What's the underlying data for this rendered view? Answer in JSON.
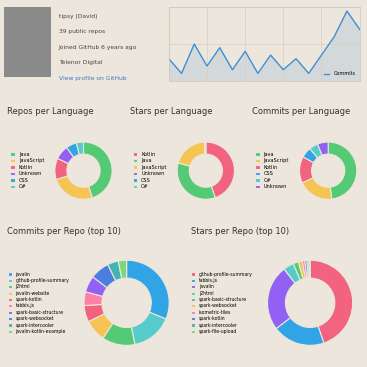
{
  "profile": {
    "name": "tipsy (David)",
    "repos": "39 public repos",
    "joined": "Joined GitHub 6 years ago",
    "company": "Telenor Digital",
    "link": "View profile on GitHub"
  },
  "chart_data": [
    {
      "type": "line",
      "series": [
        {
          "name": "Commits",
          "color": "#3f8fd2",
          "values": [
            0.3,
            0.1,
            0.5,
            0.2,
            0.45,
            0.15,
            0.4,
            0.1,
            0.35,
            0.15,
            0.3,
            0.1,
            0.35,
            0.6,
            0.95,
            0.7
          ]
        }
      ],
      "x": [
        1,
        2,
        3,
        4,
        5,
        6,
        7,
        8,
        9,
        10,
        11,
        12,
        13,
        14,
        15,
        16
      ],
      "xlim": [
        1,
        16
      ],
      "xticks": [
        1,
        4,
        7,
        10,
        13,
        16
      ],
      "ylim": [
        0,
        1
      ],
      "yticks": [
        0,
        0.5,
        1
      ],
      "grid": true,
      "tick_labels": false,
      "legend": "lower right"
    },
    {
      "type": "pie",
      "title": "Repos per Language",
      "categories": [
        "Java",
        "JavaScript",
        "Kotlin",
        "Unknown",
        "CSS",
        "C#"
      ],
      "values": [
        45,
        25,
        12,
        8,
        6,
        4
      ],
      "colors": [
        "#54ca76",
        "#f5c452",
        "#f2637f",
        "#9261f3",
        "#31a4e6",
        "#55cbcb"
      ],
      "legend": "left"
    },
    {
      "type": "pie",
      "title": "Stars per Language",
      "categories": [
        "Kotlin",
        "Java",
        "JavaScript",
        "Unknown",
        "CSS",
        "C#"
      ],
      "values": [
        45,
        35,
        20,
        0.3,
        0.3,
        0.2
      ],
      "colors": [
        "#f2637f",
        "#54ca76",
        "#f5c452",
        "#9261f3",
        "#31a4e6",
        "#55cbcb"
      ],
      "legend": "left"
    },
    {
      "type": "pie",
      "title": "Commits per Language",
      "categories": [
        "Java",
        "JavaScript",
        "Kotlin",
        "CSS",
        "C#",
        "Unknown"
      ],
      "values": [
        48,
        20,
        15,
        6,
        5,
        6
      ],
      "colors": [
        "#54ca76",
        "#f5c452",
        "#f2637f",
        "#31a4e6",
        "#55cbcb",
        "#9261f3"
      ],
      "legend": "left"
    },
    {
      "type": "pie",
      "title": "Commits per Repo (top 10)",
      "categories": [
        "javalin",
        "github-profile-summary",
        "j2html",
        "javalin-website",
        "spark-kotlin",
        "tabbis.js",
        "spark-basic-structure",
        "spark-websocket",
        "spark-intercooler",
        "javalin-kotlin-example"
      ],
      "values": [
        30,
        15,
        12,
        8,
        6,
        5,
        6,
        7,
        4,
        3
      ],
      "colors": [
        "#31a4e6",
        "#55cbcb",
        "#54ca76",
        "#f5c452",
        "#f2637f",
        "#ff7fa8",
        "#9261f3",
        "#4a7fe0",
        "#46b3b3",
        "#7cd67c"
      ],
      "legend": "left"
    },
    {
      "type": "pie",
      "title": "Stars per Repo (top 10)",
      "categories": [
        "github-profile-summary",
        "tabbis.js",
        "javalin",
        "j2html",
        "spark-basic-structure",
        "spark-websocket",
        "isometric-tiles",
        "spark-kotlin",
        "spark-intercooler",
        "spark-file-upload"
      ],
      "values": [
        45,
        20,
        25,
        4,
        2,
        1.5,
        1,
        0.8,
        0.7,
        0.5
      ],
      "colors": [
        "#f2637f",
        "#31a4e6",
        "#9261f3",
        "#55cbcb",
        "#54ca76",
        "#f5c452",
        "#ff7fa8",
        "#4a7fe0",
        "#46b3b3",
        "#7cd67c"
      ],
      "legend": "left"
    }
  ]
}
